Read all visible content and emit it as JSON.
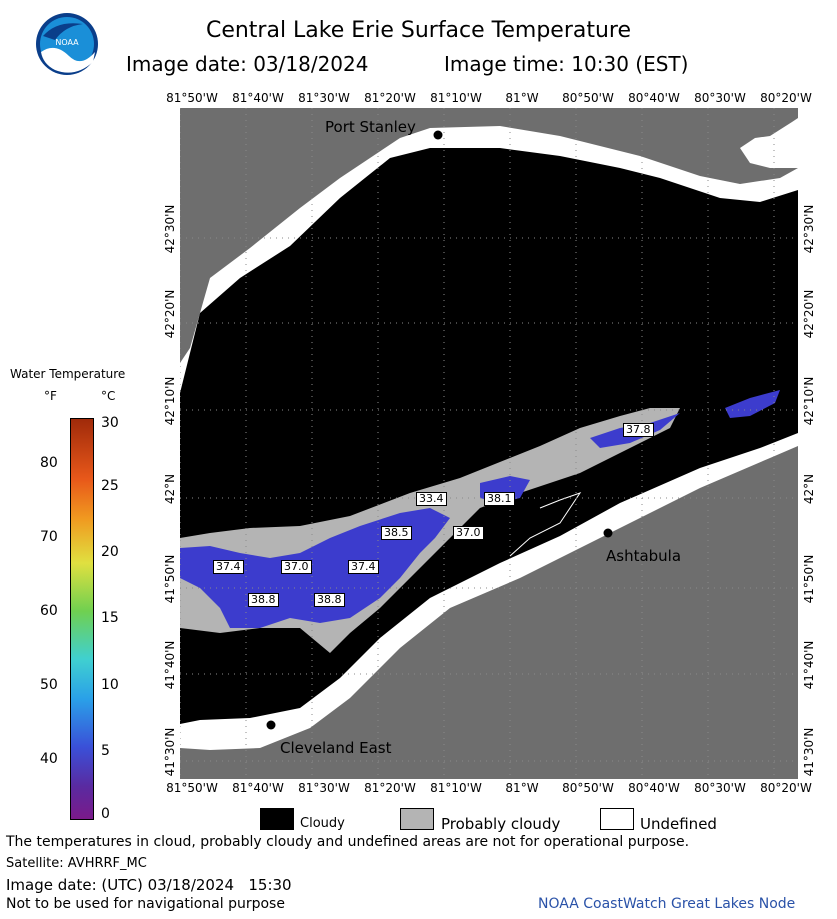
{
  "header": {
    "title": "Central Lake Erie Surface Temperature",
    "image_date": "Image date: 03/18/2024",
    "image_time": "Image time: 10:30 (EST)",
    "logo_text": "NOAA"
  },
  "map": {
    "top_ticks": [
      "81°50'W",
      "81°40'W",
      "81°30'W",
      "81°20'W",
      "81°10'W",
      "81°W",
      "80°50'W",
      "80°40'W",
      "80°30'W",
      "80°20'W"
    ],
    "bottom_ticks": [
      "81°50'W",
      "81°40'W",
      "81°30'W",
      "81°20'W",
      "81°10'W",
      "81°W",
      "80°50'W",
      "80°40'W",
      "80°30'W",
      "80°20'W"
    ],
    "left_ticks": [
      "42°30'N",
      "42°20'N",
      "42°10'N",
      "42°N",
      "41°50'N",
      "41°40'N",
      "41°30'N"
    ],
    "right_ticks": [
      "42°30'N",
      "42°20'N",
      "42°10'N",
      "42°N",
      "41°50'N",
      "41°40'N",
      "41°30'N"
    ],
    "places": {
      "port_stanley": "Port Stanley",
      "ashtabula": "Ashtabula",
      "cleveland_east": "Cleveland East"
    },
    "temp_labels": [
      "37.8",
      "33.4",
      "38.1",
      "38.5",
      "37.0",
      "37.4",
      "37.0",
      "37.4",
      "38.8",
      "38.8"
    ],
    "colors": {
      "land": "#6e6e6e",
      "cloud": "#000000",
      "probably_cloudy": "#b4b4b4",
      "undefined": "#ffffff",
      "water": "#3c3ccd"
    }
  },
  "colorbar": {
    "title": "Water Temperature",
    "unit_f": "°F",
    "unit_c": "°C",
    "f_ticks": [
      "80",
      "70",
      "60",
      "50",
      "40"
    ],
    "c_ticks": [
      "30",
      "25",
      "20",
      "15",
      "10",
      "5",
      "0"
    ],
    "range_c": [
      0,
      30
    ]
  },
  "legend": {
    "cloudy": "Cloudy",
    "probably_cloudy": "Probably cloudy",
    "undefined": "Undefined"
  },
  "footer": {
    "disclaimer": "The temperatures in cloud, probably cloudy and undefined areas are not for operational purpose.",
    "satellite": "Satellite: AVHRRF_MC",
    "utc_date": "Image date: (UTC) 03/18/2024   15:30",
    "navigation": "Not to be used for navigational purpose",
    "credit": "NOAA CoastWatch Great Lakes Node"
  }
}
